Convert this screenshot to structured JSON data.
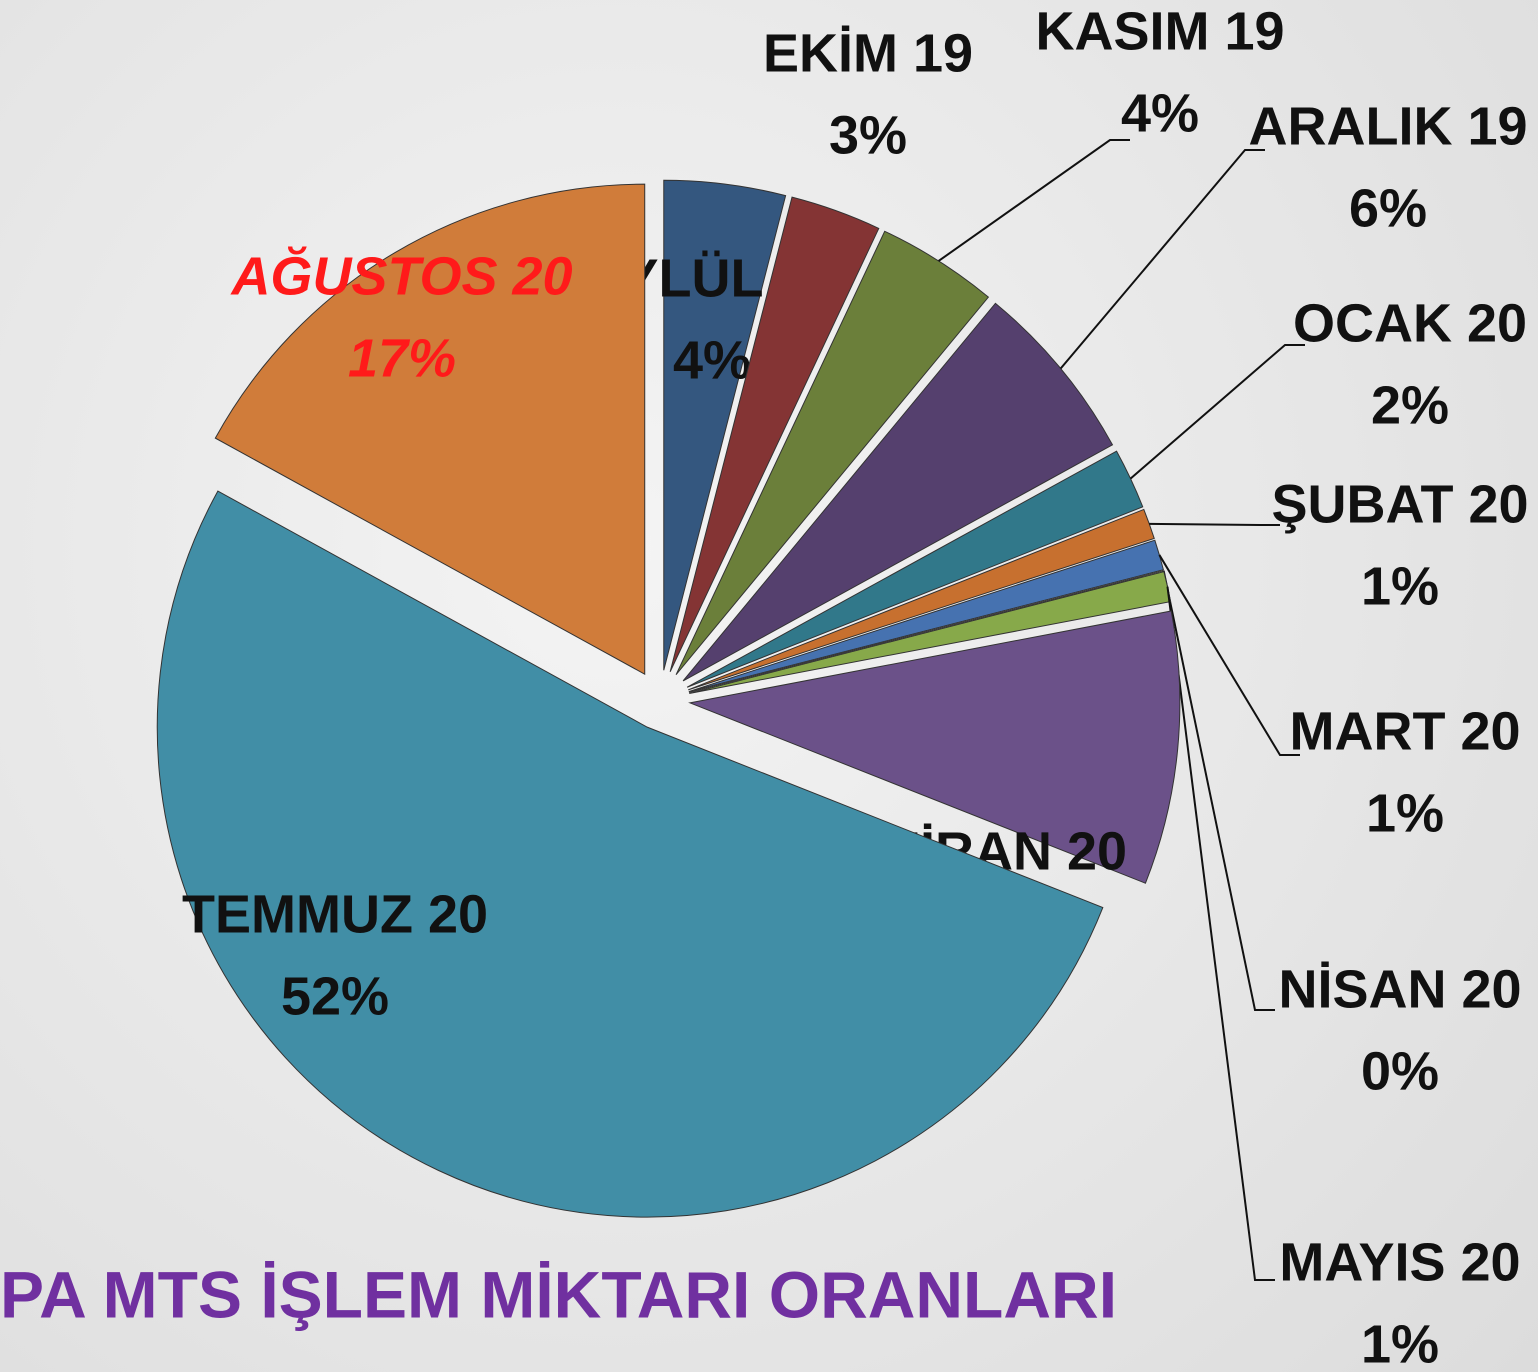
{
  "chart_data": {
    "type": "pie",
    "title": "PA MTS İŞLEM MİKTARI ORANLARI",
    "categories": [
      "EYLÜL 19",
      "EKİM 19",
      "KASIM 19",
      "ARALIK 19",
      "OCAK 20",
      "ŞUBAT 20",
      "MART 20",
      "NİSAN 20",
      "MAYIS 20",
      "HAZİRAN 20",
      "TEMMUZ 20",
      "AĞUSTOS 20"
    ],
    "values": [
      4,
      3,
      4,
      6,
      2,
      1,
      1,
      0,
      1,
      9,
      52,
      17
    ],
    "value_labels": [
      "4%",
      "3%",
      "4%",
      "6%",
      "2%",
      "1%",
      "1%",
      "0%",
      "1%",
      "9%",
      "52%",
      "17%"
    ],
    "colors": [
      "#34577f",
      "#843434",
      "#6b7f3a",
      "#55406e",
      "#31788a",
      "#c7702f",
      "#4672b0",
      "#b8433f",
      "#87a94a",
      "#6b5189",
      "#418ea6",
      "#d07c3a"
    ]
  }
}
